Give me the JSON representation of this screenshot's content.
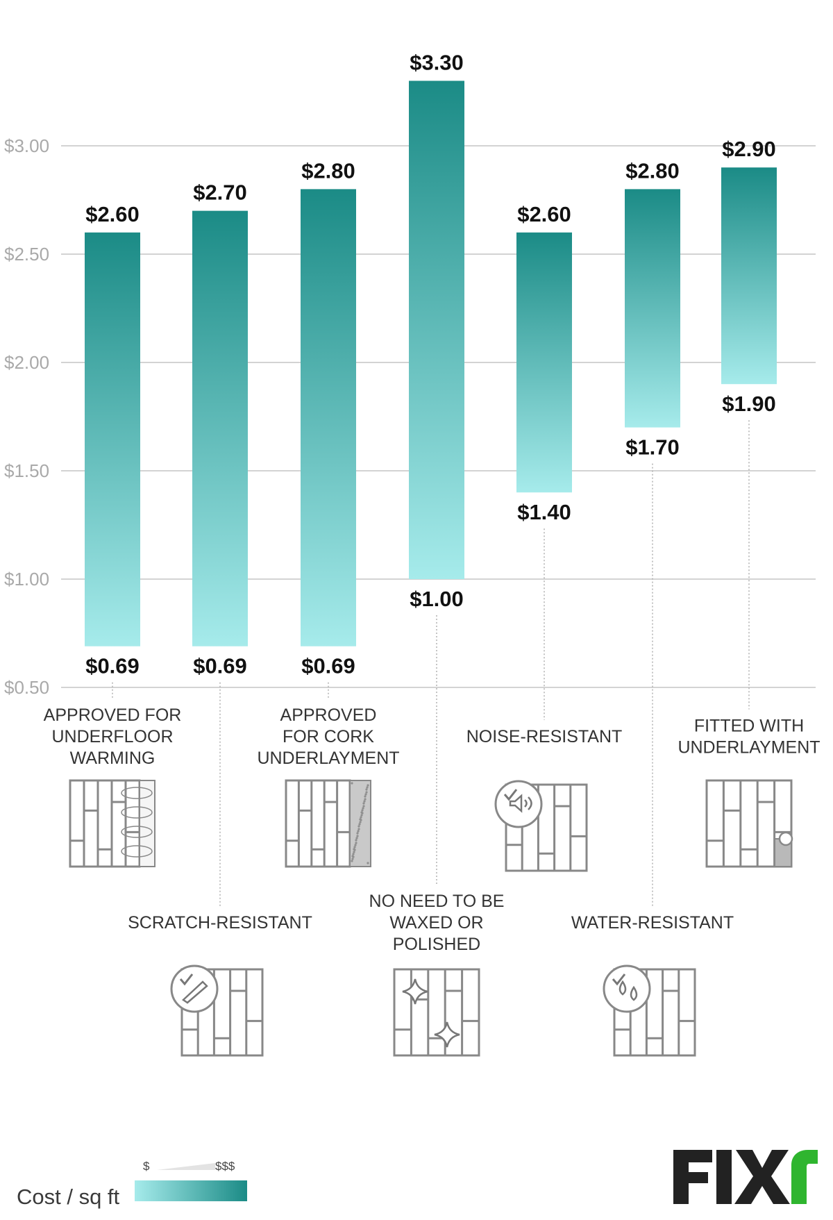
{
  "chart_data": {
    "type": "bar",
    "subtype": "floating-range",
    "y_tick_labels": [
      "$0.50",
      "$1.00",
      "$1.50",
      "$2.00",
      "$2.50",
      "$3.00"
    ],
    "y_ticks": [
      0.5,
      1.0,
      1.5,
      2.0,
      2.5,
      3.0
    ],
    "ylim": [
      0.5,
      3.3
    ],
    "grid": true,
    "bars": [
      {
        "label_lines": [
          "APPROVED FOR",
          "UNDERFLOOR",
          "WARMING"
        ],
        "low": 0.69,
        "high": 2.6,
        "low_label": "$0.69",
        "high_label": "$2.60",
        "row": "top",
        "icon": "underfloor-warming-floor-icon"
      },
      {
        "label_lines": [
          "SCRATCH-RESISTANT"
        ],
        "low": 0.69,
        "high": 2.7,
        "low_label": "$0.69",
        "high_label": "$2.70",
        "row": "bottom",
        "icon": "scratch-resistant-floor-icon"
      },
      {
        "label_lines": [
          "APPROVED",
          "FOR CORK",
          "UNDERLAYMENT"
        ],
        "low": 0.69,
        "high": 2.8,
        "low_label": "$0.69",
        "high_label": "$2.80",
        "row": "top",
        "icon": "cork-underlayment-floor-icon"
      },
      {
        "label_lines": [
          "NO NEED TO BE",
          "WAXED OR",
          "POLISHED"
        ],
        "low": 1.0,
        "high": 3.3,
        "low_label": "$1.00",
        "high_label": "$3.30",
        "row": "bottom",
        "icon": "no-wax-floor-icon"
      },
      {
        "label_lines": [
          "NOISE-RESISTANT"
        ],
        "low": 1.4,
        "high": 2.6,
        "low_label": "$1.40",
        "high_label": "$2.60",
        "row": "top",
        "icon": "noise-resistant-floor-icon"
      },
      {
        "label_lines": [
          "WATER-RESISTANT"
        ],
        "low": 1.7,
        "high": 2.8,
        "low_label": "$1.70",
        "high_label": "$2.80",
        "row": "bottom",
        "icon": "water-resistant-floor-icon"
      },
      {
        "label_lines": [
          "FITTED WITH",
          "UNDERLAYMENT"
        ],
        "low": 1.9,
        "high": 2.9,
        "low_label": "$1.90",
        "high_label": "$2.90",
        "row": "top",
        "icon": "fitted-underlayment-floor-icon"
      }
    ],
    "colors": {
      "bar_top": "#1b8b86",
      "bar_bottom": "#a6ebeb",
      "grid": "#d3d3d3",
      "tick_text": "#a9a9a9",
      "value_text": "#111111",
      "label_text": "#333333"
    }
  },
  "legend": {
    "cost_label": "Cost  /  sq ft",
    "low_symbol": "$",
    "high_symbol": "$$$"
  },
  "brand": {
    "logo_text": "FIXR",
    "dark": "#222222",
    "accent": "#2fb52f"
  }
}
